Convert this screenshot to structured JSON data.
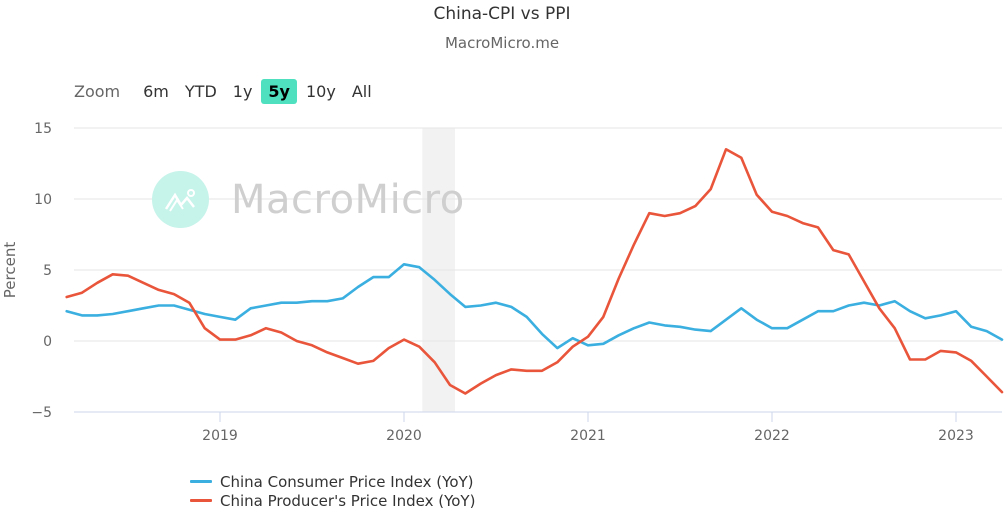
{
  "header": {
    "title": "China-CPI vs PPI",
    "subtitle": "MacroMicro.me"
  },
  "zoom": {
    "label": "Zoom",
    "buttons": [
      {
        "label": "6m",
        "active": false
      },
      {
        "label": "YTD",
        "active": false
      },
      {
        "label": "1y",
        "active": false
      },
      {
        "label": "5y",
        "active": true
      },
      {
        "label": "10y",
        "active": false
      },
      {
        "label": "All",
        "active": false
      }
    ],
    "active_color": "#4fe0c0"
  },
  "watermark": {
    "text": "MacroMicro"
  },
  "legend": {
    "items": [
      {
        "label": "China Consumer Price Index (YoY)",
        "color": "#3aafe0"
      },
      {
        "label": "China Producer's Price Index (YoY)",
        "color": "#e9553a"
      }
    ]
  },
  "chart_data": {
    "type": "line",
    "title": "China-CPI vs PPI",
    "subtitle": "MacroMicro.me",
    "xlabel": "",
    "ylabel": "Percent",
    "ylim": [
      -5,
      15
    ],
    "yticks": [
      -5,
      0,
      5,
      10,
      15
    ],
    "xticks": [
      "2019",
      "2020",
      "2021",
      "2022",
      "2023"
    ],
    "grid": true,
    "legend_position": "bottom-left",
    "shaded_region": {
      "from": "2020-02",
      "to": "2020-04",
      "color": "#f2f2f2"
    },
    "x": [
      "2018-03",
      "2018-04",
      "2018-05",
      "2018-06",
      "2018-07",
      "2018-08",
      "2018-09",
      "2018-10",
      "2018-11",
      "2018-12",
      "2019-01",
      "2019-02",
      "2019-03",
      "2019-04",
      "2019-05",
      "2019-06",
      "2019-07",
      "2019-08",
      "2019-09",
      "2019-10",
      "2019-11",
      "2019-12",
      "2020-01",
      "2020-02",
      "2020-03",
      "2020-04",
      "2020-05",
      "2020-06",
      "2020-07",
      "2020-08",
      "2020-09",
      "2020-10",
      "2020-11",
      "2020-12",
      "2021-01",
      "2021-02",
      "2021-03",
      "2021-04",
      "2021-05",
      "2021-06",
      "2021-07",
      "2021-08",
      "2021-09",
      "2021-10",
      "2021-11",
      "2021-12",
      "2022-01",
      "2022-02",
      "2022-03",
      "2022-04",
      "2022-05",
      "2022-06",
      "2022-07",
      "2022-08",
      "2022-09",
      "2022-10",
      "2022-11",
      "2022-12",
      "2023-01",
      "2023-02",
      "2023-03",
      "2023-04"
    ],
    "series": [
      {
        "name": "China Consumer Price Index (YoY)",
        "color": "#3aafe0",
        "values": [
          2.1,
          1.8,
          1.8,
          1.9,
          2.1,
          2.3,
          2.5,
          2.5,
          2.2,
          1.9,
          1.7,
          1.5,
          2.3,
          2.5,
          2.7,
          2.7,
          2.8,
          2.8,
          3.0,
          3.8,
          4.5,
          4.5,
          5.4,
          5.2,
          4.3,
          3.3,
          2.4,
          2.5,
          2.7,
          2.4,
          1.7,
          0.5,
          -0.5,
          0.2,
          -0.3,
          -0.2,
          0.4,
          0.9,
          1.3,
          1.1,
          1.0,
          0.8,
          0.7,
          1.5,
          2.3,
          1.5,
          0.9,
          0.9,
          1.5,
          2.1,
          2.1,
          2.5,
          2.7,
          2.5,
          2.8,
          2.1,
          1.6,
          1.8,
          2.1,
          1.0,
          0.7,
          0.1
        ]
      },
      {
        "name": "China Producer's Price Index (YoY)",
        "color": "#e9553a",
        "values": [
          3.1,
          3.4,
          4.1,
          4.7,
          4.6,
          4.1,
          3.6,
          3.3,
          2.7,
          0.9,
          0.1,
          0.1,
          0.4,
          0.9,
          0.6,
          0.0,
          -0.3,
          -0.8,
          -1.2,
          -1.6,
          -1.4,
          -0.5,
          0.1,
          -0.4,
          -1.5,
          -3.1,
          -3.7,
          -3.0,
          -2.4,
          -2.0,
          -2.1,
          -2.1,
          -1.5,
          -0.4,
          0.3,
          1.7,
          4.4,
          6.8,
          9.0,
          8.8,
          9.0,
          9.5,
          10.7,
          13.5,
          12.9,
          10.3,
          9.1,
          8.8,
          8.3,
          8.0,
          6.4,
          6.1,
          4.2,
          2.3,
          0.9,
          -1.3,
          -1.3,
          -0.7,
          -0.8,
          -1.4,
          -2.5,
          -3.6
        ]
      }
    ]
  }
}
